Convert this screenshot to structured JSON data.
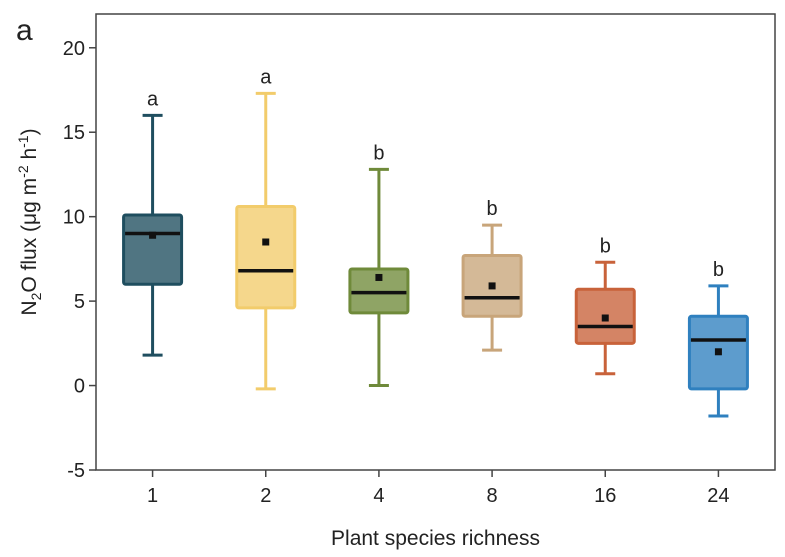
{
  "chart_data": {
    "type": "box",
    "panel_label": "a",
    "xlabel": "Plant species richness",
    "ylabel": {
      "prefix": "N",
      "sub": "2",
      "mid": "O flux (μg m",
      "sup1": "-2",
      "mid2": " h",
      "sup2": "-1",
      "suffix": ")"
    },
    "ylim": [
      -5,
      22
    ],
    "yticks": [
      -5,
      0,
      5,
      10,
      15,
      20
    ],
    "categories": [
      "1",
      "2",
      "4",
      "8",
      "16",
      "24"
    ],
    "boxes": [
      {
        "category": "1",
        "whisker_low": 1.8,
        "q1": 6.0,
        "median": 9.0,
        "q3": 10.1,
        "whisker_high": 16.0,
        "mean": 8.9,
        "letter": "a",
        "color": "#1f4e5f"
      },
      {
        "category": "2",
        "whisker_low": -0.2,
        "q1": 4.6,
        "median": 6.8,
        "q3": 10.6,
        "whisker_high": 17.3,
        "mean": 8.5,
        "letter": "a",
        "color": "#f2cc6b"
      },
      {
        "category": "4",
        "whisker_low": 0.0,
        "q1": 4.3,
        "median": 5.5,
        "q3": 6.9,
        "whisker_high": 12.8,
        "mean": 6.4,
        "letter": "b",
        "color": "#6f8a3a"
      },
      {
        "category": "8",
        "whisker_low": 2.1,
        "q1": 4.1,
        "median": 5.2,
        "q3": 7.7,
        "whisker_high": 9.5,
        "mean": 5.9,
        "letter": "b",
        "color": "#c8a57a"
      },
      {
        "category": "16",
        "whisker_low": 0.7,
        "q1": 2.5,
        "median": 3.5,
        "q3": 5.7,
        "whisker_high": 7.3,
        "mean": 4.0,
        "letter": "b",
        "color": "#c8623a"
      },
      {
        "category": "24",
        "whisker_low": -1.8,
        "q1": -0.2,
        "median": 2.7,
        "q3": 4.1,
        "whisker_high": 5.9,
        "mean": 2.0,
        "letter": "b",
        "color": "#2f80bf"
      }
    ]
  }
}
